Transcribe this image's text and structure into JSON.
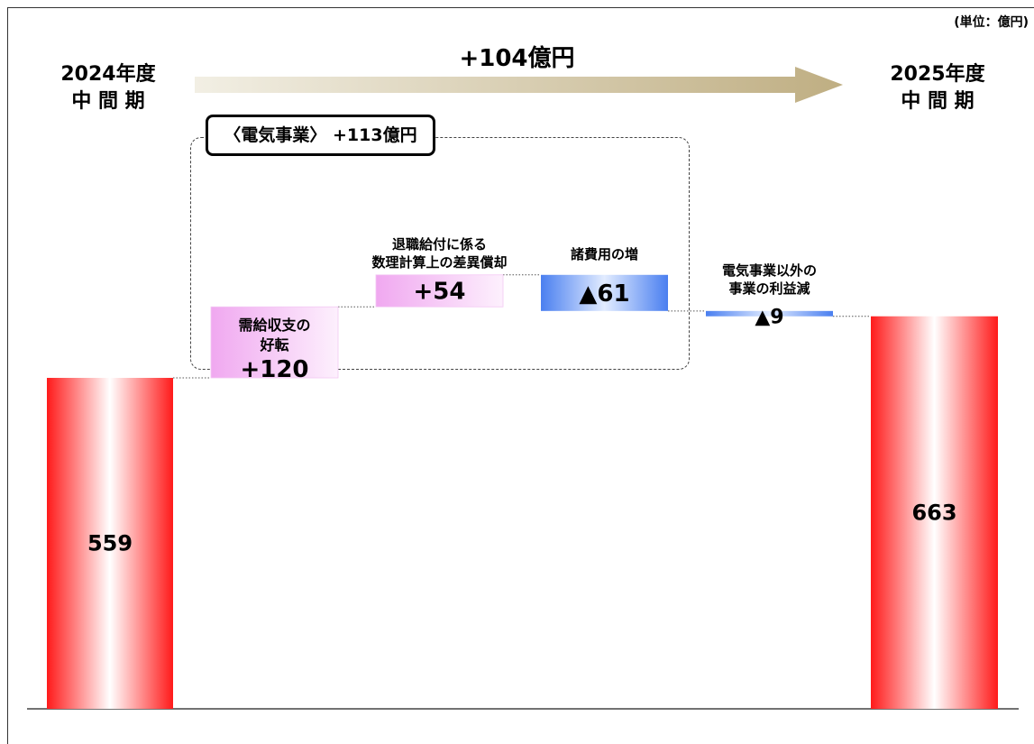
{
  "unit_label": "(単位：億円)",
  "start_period": {
    "year": "2024年度",
    "term": "中 間 期"
  },
  "end_period": {
    "year": "2025年度",
    "term": "中 間 期"
  },
  "total_change_label": "+104億円",
  "electric_segment_label": "〈電気事業〉 +113億円",
  "colors": {
    "total_bar": "#ff2020",
    "increase_step": "#f2b8f2",
    "decrease_step": "#5b8cf0",
    "arrow": "#c2b38a"
  },
  "chart_data": {
    "type": "waterfall",
    "title": "",
    "ylim": [
      0,
      700
    ],
    "steps": [
      {
        "id": "start",
        "kind": "total",
        "value": 559,
        "value_label": "559"
      },
      {
        "id": "supply",
        "kind": "delta",
        "value": 120,
        "label_lines": [
          "需給収支の",
          "好転"
        ],
        "value_label": "+120"
      },
      {
        "id": "retire",
        "kind": "delta",
        "value": 54,
        "label_lines": [
          "退職給付に係る",
          "数理計算上の差異償却"
        ],
        "value_label": "+54"
      },
      {
        "id": "expense",
        "kind": "delta",
        "value": -61,
        "label_lines": [
          "諸費用の増"
        ],
        "value_label": "▲61"
      },
      {
        "id": "nonelec",
        "kind": "delta",
        "value": -9,
        "label_lines": [
          "電気事業以外の",
          "事業の利益減"
        ],
        "value_label": "▲9"
      },
      {
        "id": "end",
        "kind": "total",
        "value": 663,
        "value_label": "663"
      }
    ]
  }
}
